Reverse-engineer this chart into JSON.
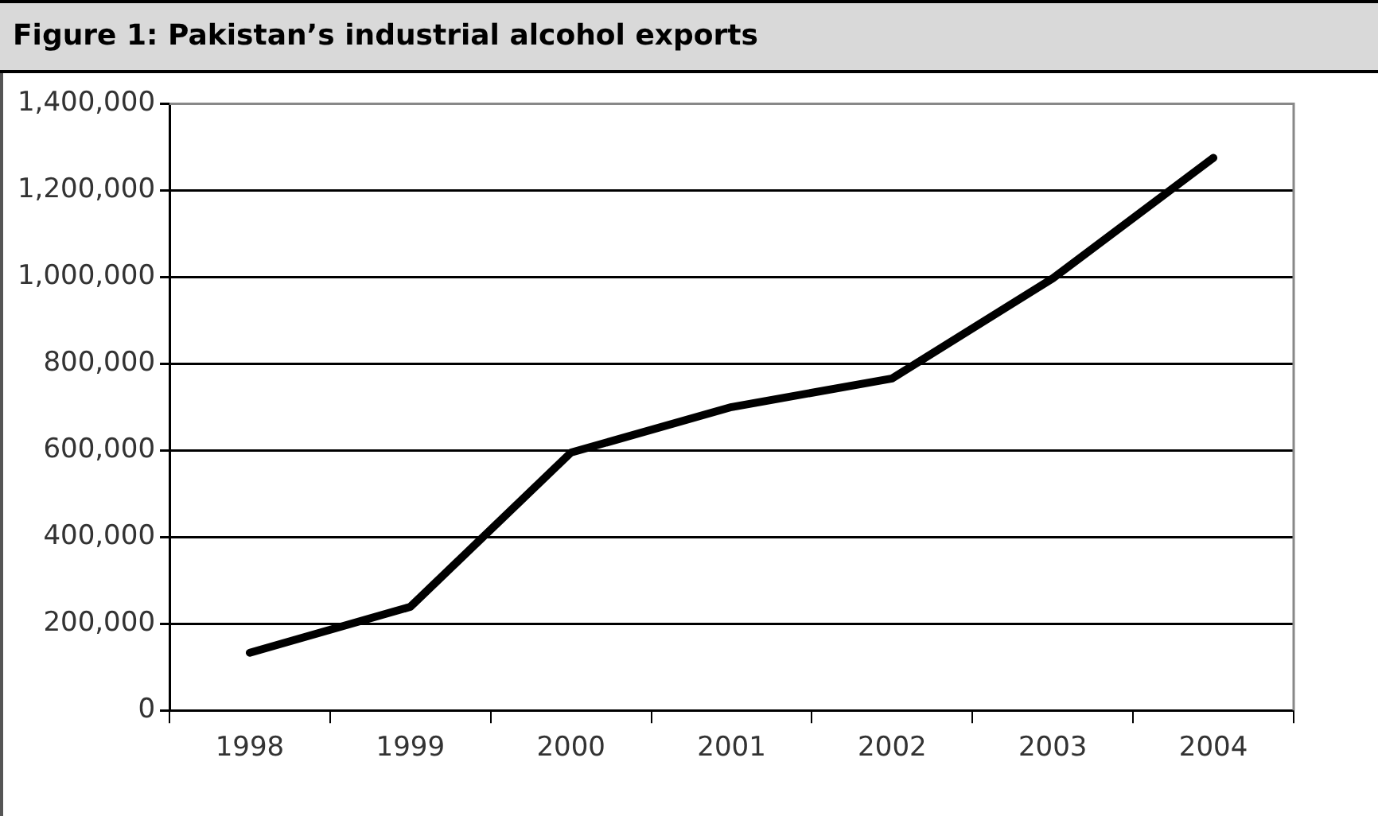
{
  "chart_data": {
    "type": "line",
    "title": "Figure 1: Pakistan’s industrial alcohol exports",
    "categories": [
      "1998",
      "1999",
      "2000",
      "2001",
      "2002",
      "2003",
      "2004"
    ],
    "series": [
      {
        "color": "#000000",
        "values": [
          133000,
          239000,
          595000,
          700000,
          766000,
          997000,
          1275000
        ]
      }
    ],
    "ylim": [
      0,
      1400000
    ],
    "yticks": [
      {
        "value": 0,
        "label": "0"
      },
      {
        "value": 200000,
        "label": "200,000"
      },
      {
        "value": 400000,
        "label": "400,000"
      },
      {
        "value": 600000,
        "label": "600,000"
      },
      {
        "value": 800000,
        "label": "800,000"
      },
      {
        "value": 1000000,
        "label": "1,000,000"
      },
      {
        "value": 1200000,
        "label": "1,200,000"
      },
      {
        "value": 1400000,
        "label": "1,400,000"
      }
    ],
    "grid": "y",
    "legend": false,
    "marker": "none",
    "line_style": "solid"
  }
}
